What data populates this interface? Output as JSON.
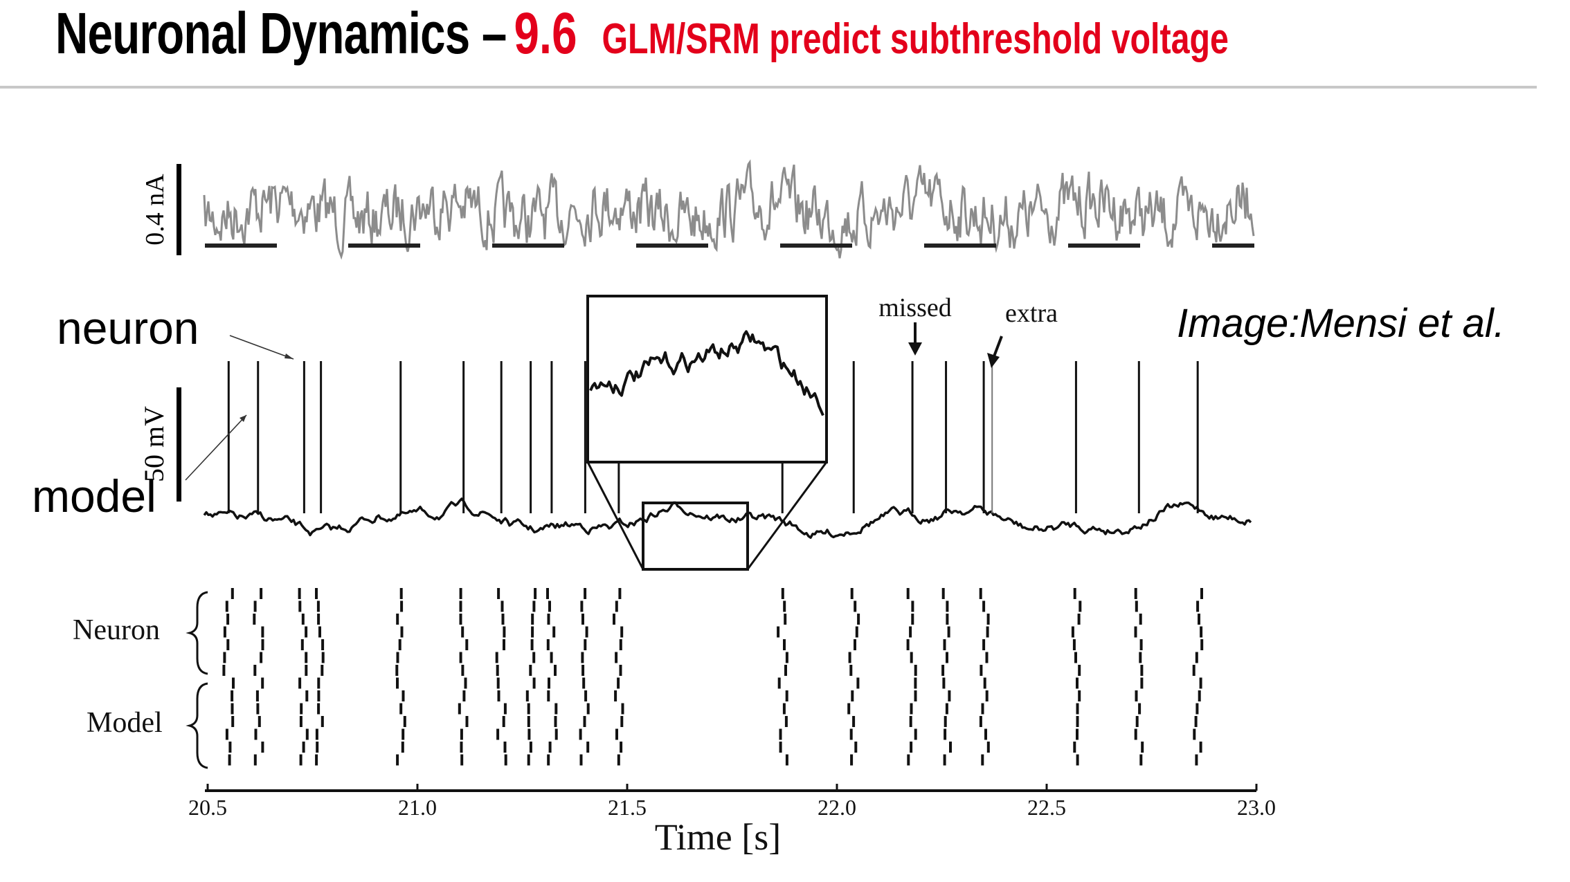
{
  "slide": {
    "title_main": "Neuronal Dynamics –",
    "title_number": "9.6",
    "title_sub": "GLM/SRM predict subthreshold voltage",
    "colors": {
      "title": "#000000",
      "accent": "#e3001b",
      "rule": "#c8c8c8",
      "current_trace": "#8c8c8c",
      "voltage_trace": "#111111"
    }
  },
  "labels": {
    "neuron": "neuron",
    "model": "model",
    "credit": "Image:Mensi et al.",
    "current_scale": "0.4 nA",
    "voltage_scale": "50 mV",
    "missed": "missed",
    "extra": "extra",
    "raster_neuron": "Neuron",
    "raster_model": "Model"
  },
  "chart_data": {
    "type": "line",
    "xlabel": "Time [s]",
    "xlim": [
      20.5,
      23.0
    ],
    "xticks": [
      "20.5",
      "21.0",
      "21.5",
      "22.0",
      "22.5",
      "23.0"
    ],
    "neuron_spike_times": [
      20.55,
      20.62,
      20.73,
      20.77,
      20.96,
      21.11,
      21.2,
      21.27,
      21.32,
      21.4,
      21.48,
      21.87,
      22.04,
      22.18,
      22.26,
      22.35,
      22.57,
      22.72,
      22.86
    ],
    "model_missed_spike_time": 22.18,
    "model_extra_spike_time": 22.37
  }
}
